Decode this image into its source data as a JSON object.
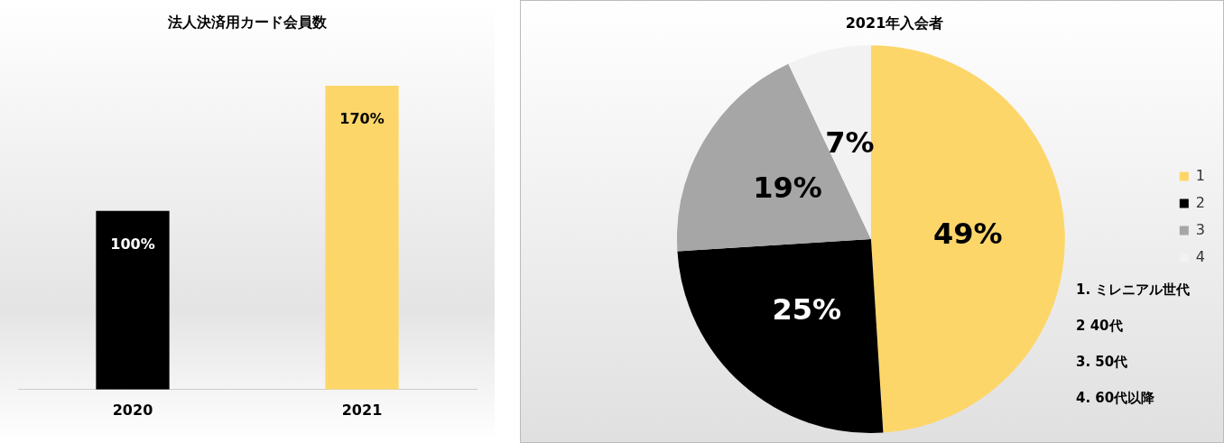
{
  "chart_data": [
    {
      "type": "bar",
      "title": "法人決済用カード会員数",
      "categories": [
        "2020",
        "2021"
      ],
      "values": [
        100,
        170
      ],
      "colors": [
        "#000000",
        "#fdd66a"
      ],
      "value_labels": [
        "100%",
        "170%"
      ],
      "grid": false,
      "legend": false
    },
    {
      "type": "pie",
      "title": "2021年入会者",
      "categories": [
        "1",
        "2",
        "3",
        "4"
      ],
      "values": [
        49,
        25,
        19,
        7
      ],
      "colors": [
        "#fdd66a",
        "#000000",
        "#a6a6a6",
        "#f2f2f2"
      ],
      "value_labels": [
        "49%",
        "25%",
        "19%",
        "7%"
      ],
      "legend": "right",
      "annotations": [
        "1. ミレニアル世代",
        "2 40代",
        "3. 50代",
        "4. 60代以降"
      ]
    }
  ]
}
